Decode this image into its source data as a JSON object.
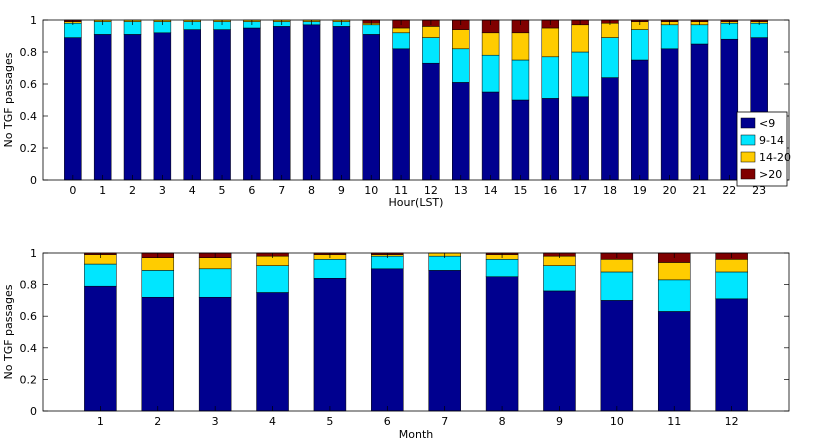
{
  "colors": {
    "<9": "#00008f",
    "9-14": "#00e6ff",
    "14-20": "#ffcc00",
    ">20": "#800000"
  },
  "chart_data": [
    {
      "type": "bar",
      "stacked": true,
      "title": "",
      "xlabel": "Hour(LST)",
      "ylabel": "No TGF passages",
      "ylim": [
        0,
        1
      ],
      "yticks": [
        0,
        0.2,
        0.4,
        0.6,
        0.8,
        1
      ],
      "ytick_labels": [
        "0",
        "0.2",
        "0.4",
        "0.6",
        "0.8",
        "1"
      ],
      "legend_position": "lower-right",
      "categories": [
        "0",
        "1",
        "2",
        "3",
        "4",
        "5",
        "6",
        "7",
        "8",
        "9",
        "10",
        "11",
        "12",
        "13",
        "14",
        "15",
        "16",
        "17",
        "18",
        "19",
        "20",
        "21",
        "22",
        "23"
      ],
      "series": [
        {
          "name": "<9",
          "values": [
            0.89,
            0.91,
            0.91,
            0.92,
            0.94,
            0.94,
            0.95,
            0.96,
            0.97,
            0.96,
            0.91,
            0.82,
            0.73,
            0.61,
            0.55,
            0.5,
            0.51,
            0.52,
            0.64,
            0.75,
            0.82,
            0.85,
            0.88,
            0.89
          ]
        },
        {
          "name": "9-14",
          "values": [
            0.09,
            0.08,
            0.08,
            0.07,
            0.05,
            0.05,
            0.04,
            0.03,
            0.02,
            0.03,
            0.06,
            0.1,
            0.16,
            0.21,
            0.23,
            0.25,
            0.26,
            0.28,
            0.25,
            0.19,
            0.15,
            0.12,
            0.1,
            0.09
          ]
        },
        {
          "name": "14-20",
          "values": [
            0.01,
            0.01,
            0.01,
            0.01,
            0.01,
            0.01,
            0.01,
            0.01,
            0.01,
            0.01,
            0.01,
            0.03,
            0.07,
            0.12,
            0.14,
            0.17,
            0.18,
            0.17,
            0.09,
            0.05,
            0.02,
            0.02,
            0.01,
            0.01
          ]
        },
        {
          "name": ">20",
          "values": [
            0.01,
            0.0,
            0.0,
            0.0,
            0.0,
            0.0,
            0.0,
            0.0,
            0.0,
            0.0,
            0.02,
            0.05,
            0.04,
            0.06,
            0.08,
            0.08,
            0.05,
            0.03,
            0.02,
            0.01,
            0.01,
            0.01,
            0.01,
            0.01
          ]
        }
      ]
    },
    {
      "type": "bar",
      "stacked": true,
      "title": "",
      "xlabel": "Month",
      "ylabel": "No TGF passages",
      "ylim": [
        0,
        1
      ],
      "yticks": [
        0,
        0.2,
        0.4,
        0.6,
        0.8,
        1
      ],
      "ytick_labels": [
        "0",
        "0.2",
        "0.4",
        "0.6",
        "0.8",
        "1"
      ],
      "categories": [
        "1",
        "2",
        "3",
        "4",
        "5",
        "6",
        "7",
        "8",
        "9",
        "10",
        "11",
        "12"
      ],
      "series": [
        {
          "name": "<9",
          "values": [
            0.79,
            0.72,
            0.72,
            0.75,
            0.84,
            0.9,
            0.89,
            0.85,
            0.76,
            0.7,
            0.63,
            0.71
          ]
        },
        {
          "name": "9-14",
          "values": [
            0.14,
            0.17,
            0.18,
            0.17,
            0.12,
            0.08,
            0.09,
            0.11,
            0.16,
            0.18,
            0.2,
            0.17
          ]
        },
        {
          "name": "14-20",
          "values": [
            0.06,
            0.08,
            0.07,
            0.06,
            0.03,
            0.01,
            0.02,
            0.03,
            0.06,
            0.08,
            0.11,
            0.08
          ]
        },
        {
          "name": ">20",
          "values": [
            0.01,
            0.03,
            0.03,
            0.02,
            0.01,
            0.01,
            0.0,
            0.01,
            0.02,
            0.04,
            0.06,
            0.04
          ]
        }
      ]
    }
  ]
}
